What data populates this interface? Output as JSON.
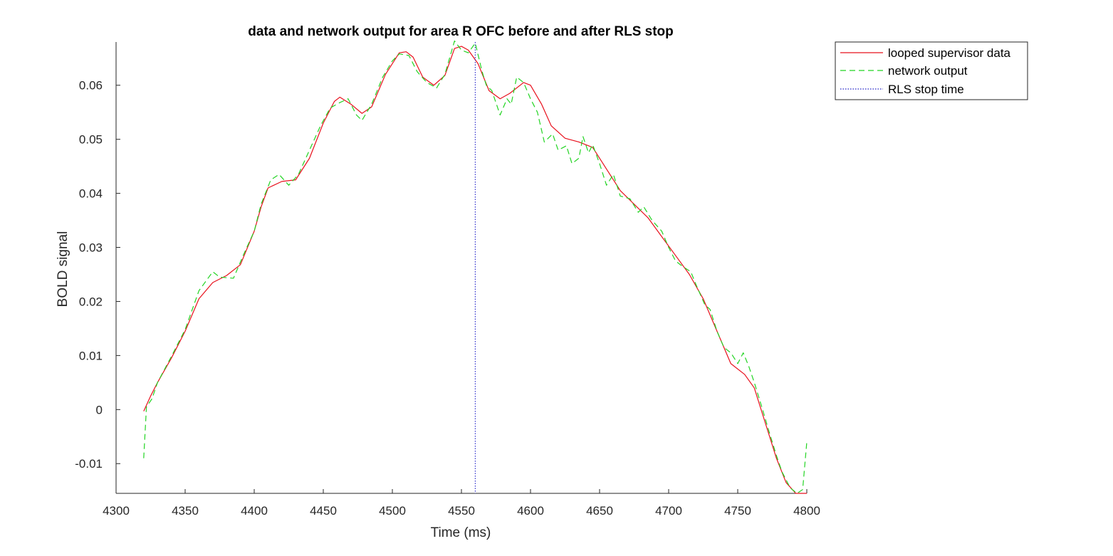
{
  "chart_data": {
    "type": "line",
    "title": "data and network output for area R OFC before and after RLS stop",
    "xlabel": "Time (ms)",
    "ylabel": "BOLD signal",
    "xlim": [
      4300,
      4800
    ],
    "ylim": [
      -0.0155,
      0.068
    ],
    "xticks": [
      4300,
      4350,
      4400,
      4450,
      4500,
      4550,
      4600,
      4650,
      4700,
      4750,
      4800
    ],
    "yticks": [
      -0.01,
      0,
      0.01,
      0.02,
      0.03,
      0.04,
      0.05,
      0.06
    ],
    "xtick_labels": [
      "4300",
      "4350",
      "4400",
      "4450",
      "4500",
      "4550",
      "4600",
      "4650",
      "4700",
      "4750",
      "4800"
    ],
    "ytick_labels": [
      "-0.01",
      "0",
      "0.01",
      "0.02",
      "0.03",
      "0.04",
      "0.05",
      "0.06"
    ],
    "grid": false,
    "legend_position": "outside-top-right",
    "stop_time": 4560,
    "series": [
      {
        "name": "looped supervisor data",
        "color": "#e8101c",
        "style": "solid",
        "points": [
          [
            4320,
            -0.0003
          ],
          [
            4325,
            0.0025
          ],
          [
            4330,
            0.005
          ],
          [
            4340,
            0.0095
          ],
          [
            4350,
            0.0145
          ],
          [
            4360,
            0.0205
          ],
          [
            4370,
            0.0235
          ],
          [
            4380,
            0.0248
          ],
          [
            4390,
            0.0268
          ],
          [
            4400,
            0.033
          ],
          [
            4405,
            0.0375
          ],
          [
            4410,
            0.041
          ],
          [
            4420,
            0.0422
          ],
          [
            4430,
            0.0425
          ],
          [
            4440,
            0.0465
          ],
          [
            4450,
            0.053
          ],
          [
            4458,
            0.057
          ],
          [
            4462,
            0.0578
          ],
          [
            4470,
            0.0565
          ],
          [
            4478,
            0.0548
          ],
          [
            4485,
            0.056
          ],
          [
            4495,
            0.062
          ],
          [
            4505,
            0.066
          ],
          [
            4510,
            0.0662
          ],
          [
            4515,
            0.0652
          ],
          [
            4522,
            0.0615
          ],
          [
            4530,
            0.06
          ],
          [
            4538,
            0.0618
          ],
          [
            4545,
            0.0668
          ],
          [
            4550,
            0.0672
          ],
          [
            4555,
            0.0665
          ],
          [
            4562,
            0.064
          ],
          [
            4570,
            0.059
          ],
          [
            4578,
            0.0575
          ],
          [
            4585,
            0.0585
          ],
          [
            4595,
            0.0605
          ],
          [
            4600,
            0.06
          ],
          [
            4608,
            0.0565
          ],
          [
            4615,
            0.0525
          ],
          [
            4625,
            0.0502
          ],
          [
            4635,
            0.0495
          ],
          [
            4645,
            0.0485
          ],
          [
            4655,
            0.0445
          ],
          [
            4665,
            0.0405
          ],
          [
            4675,
            0.038
          ],
          [
            4685,
            0.0355
          ],
          [
            4695,
            0.032
          ],
          [
            4705,
            0.0285
          ],
          [
            4715,
            0.025
          ],
          [
            4725,
            0.0205
          ],
          [
            4735,
            0.0145
          ],
          [
            4745,
            0.0085
          ],
          [
            4755,
            0.0065
          ],
          [
            4762,
            0.004
          ],
          [
            4770,
            -0.0025
          ],
          [
            4778,
            -0.009
          ],
          [
            4785,
            -0.0135
          ],
          [
            4792,
            -0.0155
          ],
          [
            4800,
            -0.0155
          ]
        ]
      },
      {
        "name": "network output",
        "color": "#22d422",
        "style": "dashed",
        "points": [
          [
            4320,
            -0.009
          ],
          [
            4322,
            0.0005
          ],
          [
            4326,
            0.002
          ],
          [
            4330,
            0.005
          ],
          [
            4340,
            0.0098
          ],
          [
            4350,
            0.0148
          ],
          [
            4360,
            0.022
          ],
          [
            4370,
            0.0255
          ],
          [
            4375,
            0.0245
          ],
          [
            4385,
            0.0243
          ],
          [
            4392,
            0.0285
          ],
          [
            4400,
            0.033
          ],
          [
            4405,
            0.038
          ],
          [
            4412,
            0.0425
          ],
          [
            4418,
            0.0435
          ],
          [
            4425,
            0.0415
          ],
          [
            4432,
            0.0435
          ],
          [
            4440,
            0.048
          ],
          [
            4448,
            0.0525
          ],
          [
            4455,
            0.0558
          ],
          [
            4462,
            0.0568
          ],
          [
            4468,
            0.0575
          ],
          [
            4474,
            0.0545
          ],
          [
            4478,
            0.0535
          ],
          [
            4485,
            0.0565
          ],
          [
            4493,
            0.0615
          ],
          [
            4500,
            0.0645
          ],
          [
            4505,
            0.0658
          ],
          [
            4512,
            0.0655
          ],
          [
            4518,
            0.0625
          ],
          [
            4525,
            0.0605
          ],
          [
            4532,
            0.0595
          ],
          [
            4538,
            0.062
          ],
          [
            4545,
            0.0682
          ],
          [
            4550,
            0.0665
          ],
          [
            4555,
            0.066
          ],
          [
            4560,
            0.0678
          ],
          [
            4565,
            0.0625
          ],
          [
            4568,
            0.06
          ],
          [
            4572,
            0.059
          ],
          [
            4578,
            0.0545
          ],
          [
            4583,
            0.0575
          ],
          [
            4586,
            0.0565
          ],
          [
            4590,
            0.0615
          ],
          [
            4595,
            0.0605
          ],
          [
            4600,
            0.0575
          ],
          [
            4605,
            0.055
          ],
          [
            4610,
            0.0495
          ],
          [
            4616,
            0.051
          ],
          [
            4620,
            0.048
          ],
          [
            4626,
            0.0488
          ],
          [
            4630,
            0.0455
          ],
          [
            4635,
            0.0465
          ],
          [
            4638,
            0.0505
          ],
          [
            4642,
            0.0475
          ],
          [
            4645,
            0.049
          ],
          [
            4650,
            0.0455
          ],
          [
            4655,
            0.0415
          ],
          [
            4660,
            0.0435
          ],
          [
            4665,
            0.0395
          ],
          [
            4672,
            0.039
          ],
          [
            4678,
            0.0365
          ],
          [
            4682,
            0.0375
          ],
          [
            4688,
            0.035
          ],
          [
            4695,
            0.033
          ],
          [
            4700,
            0.03
          ],
          [
            4705,
            0.0275
          ],
          [
            4710,
            0.0265
          ],
          [
            4716,
            0.0255
          ],
          [
            4720,
            0.023
          ],
          [
            4726,
            0.0195
          ],
          [
            4730,
            0.0185
          ],
          [
            4735,
            0.0145
          ],
          [
            4740,
            0.0115
          ],
          [
            4745,
            0.0105
          ],
          [
            4750,
            0.0085
          ],
          [
            4754,
            0.0105
          ],
          [
            4758,
            0.008
          ],
          [
            4762,
            0.005
          ],
          [
            4768,
            0.0
          ],
          [
            4772,
            -0.0035
          ],
          [
            4778,
            -0.0085
          ],
          [
            4782,
            -0.0115
          ],
          [
            4788,
            -0.0145
          ],
          [
            4793,
            -0.0155
          ],
          [
            4797,
            -0.0148
          ],
          [
            4800,
            -0.006
          ]
        ]
      },
      {
        "name": "RLS stop time",
        "color": "#2020c8",
        "style": "dotted"
      }
    ]
  }
}
